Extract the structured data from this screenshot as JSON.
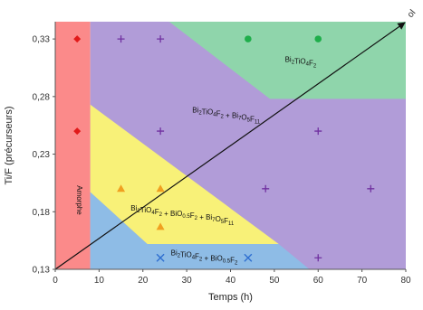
{
  "chart_data": {
    "type": "scatter",
    "title": "",
    "xlabel": "Temps (h)",
    "ylabel": "Ti/F (précurseurs)",
    "xlim": [
      0,
      80
    ],
    "ylim": [
      0.13,
      0.345
    ],
    "x_ticks": [
      0,
      10,
      20,
      30,
      40,
      50,
      60,
      70,
      80
    ],
    "x_tick_labels": [
      "0",
      "10",
      "20",
      "30",
      "40",
      "50",
      "60",
      "70",
      "80"
    ],
    "y_ticks": [
      0.13,
      0.18,
      0.23,
      0.28,
      0.33
    ],
    "y_tick_labels": [
      "0,13",
      "0,18",
      "0,23",
      "0,28",
      "0,33"
    ],
    "grid": false,
    "regions": [
      {
        "label": "Amorphe",
        "color": "#fb8a8a",
        "polygon": [
          [
            0,
            0.13
          ],
          [
            8,
            0.13
          ],
          [
            8,
            0.345
          ],
          [
            0,
            0.345
          ]
        ],
        "label_pos": [
          5,
          0.19
        ],
        "vertical": true
      },
      {
        "label": "Bi2TiO4F2 + Bi7O5F11",
        "color": "#b19cd8",
        "polygon": [
          [
            8,
            0.13
          ],
          [
            80,
            0.13
          ],
          [
            80,
            0.345
          ],
          [
            8,
            0.345
          ]
        ],
        "label_pos": [
          39,
          0.266
        ]
      },
      {
        "label": "Bi2TiO4F2",
        "color": "#8fd5ab",
        "polygon": [
          [
            26,
            0.345
          ],
          [
            80,
            0.345
          ],
          [
            80,
            0.278
          ],
          [
            49,
            0.278
          ]
        ],
        "label_pos": [
          56,
          0.31
        ]
      },
      {
        "label": "Bi2TiO4F2 + BiO0.5F2 + Bi7O5F11",
        "color": "#f8f178",
        "polygon": [
          [
            8,
            0.273
          ],
          [
            8,
            0.197
          ],
          [
            21,
            0.152
          ],
          [
            51,
            0.152
          ]
        ],
        "label_pos": [
          29,
          0.181
        ]
      },
      {
        "label": "Bi2TiO4F2 + BiO0.5F2",
        "color": "#8ebce6",
        "polygon": [
          [
            8,
            0.197
          ],
          [
            21,
            0.152
          ],
          [
            51,
            0.152
          ],
          [
            58,
            0.13
          ],
          [
            8,
            0.13
          ]
        ],
        "label_pos": [
          34,
          0.142
        ]
      }
    ],
    "series": [
      {
        "marker": "diamond",
        "color": "#e11a1a",
        "points": [
          [
            5,
            0.33
          ],
          [
            5,
            0.25
          ]
        ]
      },
      {
        "marker": "plus",
        "color": "#7030a0",
        "points": [
          [
            15,
            0.33
          ],
          [
            24,
            0.33
          ],
          [
            24,
            0.25
          ],
          [
            48,
            0.2
          ],
          [
            60,
            0.25
          ],
          [
            72,
            0.2
          ],
          [
            60,
            0.14
          ]
        ]
      },
      {
        "marker": "circle",
        "color": "#1fae4b",
        "points": [
          [
            44,
            0.33
          ],
          [
            60,
            0.33
          ]
        ]
      },
      {
        "marker": "triangle",
        "color": "#f0a020",
        "points": [
          [
            15,
            0.2
          ],
          [
            24,
            0.2
          ],
          [
            24,
            0.167
          ]
        ]
      },
      {
        "marker": "x",
        "color": "#2f6fd0",
        "points": [
          [
            24,
            0.14
          ],
          [
            44,
            0.14
          ]
        ]
      }
    ],
    "trend_arrow": {
      "from": [
        0,
        0.13
      ],
      "to": [
        80,
        0.345
      ],
      "color": "#111111",
      "end_label": "ol"
    }
  }
}
